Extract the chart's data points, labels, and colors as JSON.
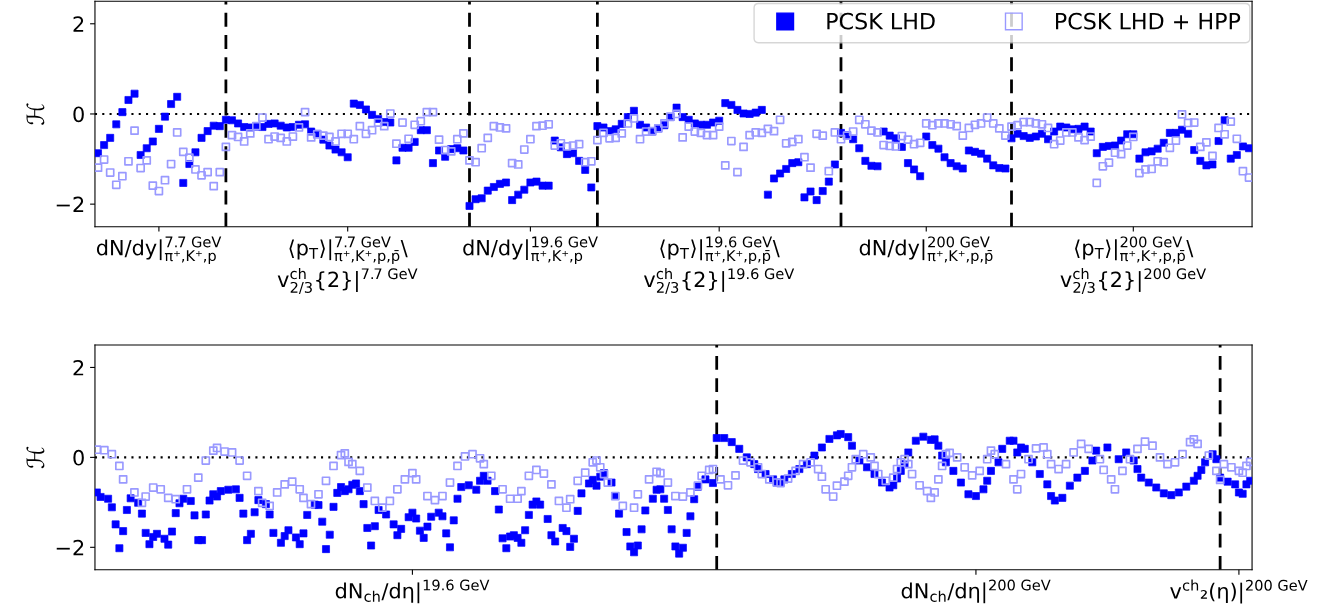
{
  "chart_data": [
    {
      "type": "scatter",
      "ylabel": "ℋ",
      "ylim": [
        -2.5,
        2.5
      ],
      "yticks": [
        -2,
        0,
        2
      ],
      "categories": [
        null,
        null,
        null,
        null,
        null,
        null,
        null,
        null,
        null,
        null,
        "dN/dy|$^{7.7 GeV}$$_{π⁺,K⁺,p}$",
        null,
        null,
        null,
        null,
        null,
        null,
        null,
        null,
        null,
        null,
        null,
        null,
        null,
        null,
        null,
        null,
        null,
        null,
        null,
        null,
        null,
        null,
        null,
        null,
        null,
        null,
        null,
        null,
        null,
        null,
        "⟨p$_{T}$⟩|$^{7.7 GeV}$$_{π⁺,K⁺,p,p̄}$\\\nv$^{ch}$$_{2/3}${2}|$^{7.7 GeV}$",
        null,
        null,
        null,
        null,
        null,
        null,
        null,
        null,
        null,
        null,
        null,
        null,
        null,
        null,
        null,
        null,
        null,
        null,
        null,
        null,
        null,
        null,
        null,
        null,
        null,
        null,
        null,
        null,
        null,
        "dN/dy|$^{19.6 GeV}$$_{π⁺,K⁺,p}$",
        null,
        null,
        null,
        null,
        null,
        null,
        null,
        null,
        null,
        null,
        null,
        null,
        null,
        null,
        null,
        null,
        null,
        null,
        null,
        null,
        null,
        null,
        null,
        null,
        null,
        null,
        null,
        null,
        null,
        null,
        "⟨p$_{T}$⟩|$^{19.6 GeV}$$_{π⁺,K⁺,p,p̄}$\\\nv$^{ch}$$_{2/3}${2}|$^{19.6 GeV}$",
        null,
        null,
        null,
        null,
        null,
        null,
        null,
        null,
        null,
        null,
        null,
        null,
        null,
        null,
        null,
        null,
        null,
        null,
        null,
        null,
        null,
        null,
        null,
        null,
        null,
        null,
        null,
        null,
        null,
        null,
        null,
        null,
        null,
        "dN/dy|$^{200 GeV}$$_{π⁺,K⁺,p,p̄}$",
        null,
        null,
        null,
        null,
        null,
        null,
        null,
        null,
        null,
        null,
        null,
        null,
        null,
        null,
        null,
        null,
        null,
        null,
        null,
        null,
        null,
        null,
        null,
        null,
        null,
        null,
        null,
        null,
        null,
        null,
        null,
        null,
        null,
        "⟨p$_{T}$⟩|$^{200 GeV}$$_{π⁺,K⁺,p,p̄}$\\\nv$^{ch}$$_{2/3}${2}|$^{200 GeV}$",
        null,
        null,
        null,
        null,
        null,
        null,
        null,
        null,
        null,
        null,
        null,
        null,
        null,
        null,
        null,
        null,
        null,
        null,
        null
      ],
      "grid": false,
      "legend": "top right",
      "marker": "square",
      "ref_lines": [
        {
          "axis": "y",
          "value": 0,
          "color": "#000000",
          "line_style": "dotted"
        }
      ],
      "series": [
        {
          "name": "PCSK LHD",
          "color": "#0000ff",
          "values": [
            -0.87,
            -0.69,
            -0.53,
            -0.23,
            0.04,
            0.31,
            0.45,
            -0.91,
            -0.76,
            -0.61,
            -0.33,
            -0.06,
            0.22,
            0.38,
            -1.53,
            -1.11,
            -0.85,
            -0.53,
            -0.38,
            -0.26,
            -0.27,
            -0.13,
            -0.14,
            -0.21,
            -0.29,
            -0.3,
            -0.28,
            -0.29,
            -0.22,
            -0.21,
            -0.26,
            -0.3,
            -0.29,
            -0.24,
            -0.23,
            -0.39,
            -0.44,
            -0.57,
            -0.7,
            -0.79,
            -0.85,
            -0.96,
            0.23,
            0.2,
            0.1,
            -0.02,
            -0.11,
            -0.18,
            -0.19,
            -1.03,
            -0.75,
            -0.75,
            -0.62,
            -0.36,
            -0.36,
            -1.09,
            -0.81,
            -0.95,
            -0.78,
            -0.76,
            -0.81,
            -2.04,
            -1.89,
            -1.87,
            -1.7,
            -1.62,
            -1.55,
            -1.52,
            -1.91,
            -1.79,
            -1.68,
            -1.52,
            -1.5,
            -1.59,
            -1.59,
            -0.59,
            -0.74,
            -0.89,
            -0.87,
            -1.04,
            -1.24,
            -1.63,
            -0.27,
            -0.3,
            -0.38,
            -0.34,
            -0.22,
            -0.07,
            0.07,
            -0.24,
            -0.3,
            -0.39,
            -0.32,
            -0.25,
            -0.07,
            0.14,
            -0.07,
            -0.13,
            -0.21,
            -0.24,
            -0.24,
            -0.19,
            -0.15,
            0.24,
            0.2,
            0.09,
            0.01,
            0.0,
            0.03,
            0.09,
            -1.79,
            -1.43,
            -1.32,
            -1.22,
            -1.09,
            -1.07,
            -1.85,
            -1.72,
            -1.91,
            -1.71,
            -1.5,
            -1.12,
            -0.42,
            -0.47,
            -0.56,
            -0.76,
            -1.04,
            -1.15,
            -1.16,
            -0.39,
            -0.48,
            -0.54,
            -0.73,
            -1.09,
            -1.23,
            -1.38,
            -0.5,
            -0.69,
            -0.77,
            -0.96,
            -1.09,
            -1.16,
            -1.21,
            -0.81,
            -0.84,
            -0.88,
            -0.99,
            -1.14,
            -1.2,
            -1.21,
            -0.54,
            -0.44,
            -0.49,
            -0.53,
            -0.5,
            -0.44,
            -0.56,
            -0.39,
            -0.28,
            -0.3,
            -0.34,
            -0.33,
            -0.28,
            -0.39,
            -0.87,
            -0.73,
            -0.71,
            -0.7,
            -0.59,
            -0.45,
            -0.45,
            -0.99,
            -0.85,
            -0.83,
            -0.77,
            -0.64,
            -0.42,
            -0.42,
            -0.35,
            -0.44,
            -0.8,
            -1.04,
            -1.14,
            -1.12,
            -0.6,
            -0.14,
            -0.99,
            -0.91,
            -0.72,
            -0.76
          ]
        },
        {
          "name": "PCSK LHD + HPP",
          "color": "#9999ff",
          "values": [
            -1.19,
            -1.01,
            -1.3,
            -1.57,
            -1.38,
            -1.05,
            -0.37,
            -1.2,
            -1.03,
            -1.59,
            -1.71,
            -1.47,
            -1.11,
            -0.41,
            -0.84,
            -0.97,
            -1.23,
            -1.36,
            -1.29,
            -1.6,
            -1.29,
            -0.73,
            -0.47,
            -0.51,
            -0.61,
            -0.43,
            -0.27,
            -0.08,
            -0.56,
            -0.5,
            -0.53,
            -0.61,
            -0.5,
            -0.3,
            0.04,
            -0.52,
            -0.45,
            -0.48,
            -0.51,
            -0.61,
            -0.44,
            -0.44,
            -0.56,
            -0.27,
            -0.44,
            -0.36,
            -0.19,
            -0.27,
            0.01,
            -0.66,
            -0.19,
            -0.55,
            -0.24,
            -0.16,
            0.04,
            0.04,
            -0.57,
            -0.8,
            -0.83,
            -0.56,
            -0.43,
            -1.03,
            -1.07,
            -0.76,
            -0.53,
            -0.27,
            -0.3,
            -0.32,
            -1.09,
            -1.12,
            -0.79,
            -0.56,
            -0.27,
            -0.26,
            -0.23,
            -0.7,
            -0.65,
            -0.72,
            -0.7,
            -0.67,
            -1.07,
            -1.05,
            -0.58,
            -0.42,
            -0.54,
            -0.53,
            -0.43,
            -0.21,
            -0.1,
            -0.56,
            -0.39,
            -0.38,
            -0.32,
            -0.21,
            -0.06,
            0.0,
            -0.52,
            -0.28,
            -0.39,
            -0.42,
            -0.47,
            -0.47,
            -0.28,
            -1.14,
            -0.6,
            -1.29,
            -0.73,
            -0.47,
            -0.41,
            -0.42,
            -0.33,
            -0.38,
            -0.13,
            -0.65,
            -0.62,
            -0.56,
            -0.96,
            -1.19,
            -0.44,
            -0.48,
            -1.27,
            -0.41,
            -0.56,
            -0.48,
            -0.39,
            -0.13,
            -0.23,
            -0.37,
            -0.41,
            -0.69,
            -0.71,
            -0.72,
            -0.49,
            -0.57,
            -0.67,
            -0.64,
            -0.21,
            -0.25,
            -0.21,
            -0.21,
            -0.23,
            -0.27,
            -0.48,
            -0.31,
            -0.24,
            -0.21,
            -0.08,
            -0.21,
            -0.32,
            -0.48,
            -0.28,
            -0.25,
            -0.18,
            -0.18,
            -0.21,
            -0.23,
            -0.31,
            -0.67,
            -0.59,
            -0.41,
            -0.41,
            -0.52,
            -0.58,
            -0.5,
            -1.53,
            -1.16,
            -1.08,
            -0.86,
            -0.89,
            -0.7,
            -0.51,
            -1.31,
            -1.23,
            -1.22,
            -1.05,
            -1.07,
            -0.75,
            -0.59,
            -0.01,
            -0.2,
            -0.19,
            -0.73,
            -0.63,
            -0.93,
            -0.31,
            -0.45,
            -0.17,
            -0.55,
            -1.27,
            -1.41
          ]
        }
      ]
    },
    {
      "type": "scatter",
      "ylabel": "ℋ",
      "ylim": [
        -2.5,
        2.5
      ],
      "yticks": [
        -2,
        0,
        2
      ],
      "categories": [
        null,
        null,
        null,
        null,
        null,
        null,
        null,
        null,
        null,
        null,
        null,
        null,
        null,
        null,
        null,
        null,
        null,
        null,
        null,
        null,
        null,
        null,
        null,
        null,
        null,
        null,
        null,
        null,
        null,
        null,
        null,
        null,
        null,
        null,
        null,
        null,
        null,
        null,
        null,
        null,
        null,
        null,
        null,
        null,
        null,
        null,
        null,
        null,
        null,
        null,
        null,
        null,
        null,
        null,
        null,
        null,
        null,
        null,
        null,
        null,
        null,
        null,
        null,
        null,
        null,
        null,
        null,
        null,
        null,
        null,
        null,
        null,
        null,
        null,
        null,
        null,
        null,
        null,
        null,
        null,
        null,
        null,
        null,
        null,
        "dN$_{ch}$/dη|$^{19.6 GeV}$",
        null,
        null,
        null,
        null,
        null,
        null,
        null,
        null,
        null,
        null,
        null,
        null,
        null,
        null,
        null,
        null,
        null,
        null,
        null,
        null,
        null,
        null,
        null,
        null,
        null,
        null,
        null,
        null,
        null,
        null,
        null,
        null,
        null,
        null,
        null,
        null,
        null,
        null,
        null,
        null,
        null,
        null,
        null,
        null,
        null,
        null,
        null,
        null,
        null,
        null,
        null,
        null,
        null,
        null,
        null,
        null,
        null,
        null,
        null,
        null,
        null,
        null,
        null,
        null,
        null,
        null,
        null,
        null,
        null,
        null,
        null,
        null,
        null,
        null,
        null,
        null,
        null,
        null,
        null,
        null,
        null,
        null,
        null,
        null,
        null,
        null,
        null,
        null,
        null,
        null,
        null,
        null,
        null,
        null,
        null,
        null,
        null,
        null,
        null,
        null,
        null,
        null,
        null,
        null,
        null,
        null,
        null,
        null,
        null,
        null,
        null,
        null,
        null,
        null,
        null,
        null,
        null,
        null,
        null,
        null,
        null,
        null,
        null,
        null,
        null,
        null,
        null,
        null,
        null,
        null,
        null,
        null,
        null,
        null,
        null,
        null,
        null,
        null,
        null,
        null,
        null,
        null,
        null,
        null,
        null,
        null,
        null,
        null,
        null,
        "dN$_{ch}$/dη|$^{200 GeV}$",
        null,
        null,
        null,
        null,
        null,
        null,
        null,
        null,
        null,
        null,
        null,
        null,
        null,
        null,
        null,
        null,
        null,
        null,
        null,
        null,
        null,
        null,
        null,
        null,
        null,
        null,
        null,
        null,
        null,
        null,
        null,
        null,
        null,
        null,
        null,
        null,
        null,
        null,
        null,
        null,
        null,
        null,
        null,
        null,
        null,
        null,
        null,
        null,
        null,
        null,
        null,
        null,
        null,
        null,
        null,
        null,
        null,
        null,
        null,
        null,
        null,
        null,
        null,
        null,
        null,
        null,
        null,
        null,
        null,
        "v$^{ch}$₂(η)|$^{200 GeV}$",
        null,
        null,
        null
      ],
      "grid": false,
      "marker": "square",
      "ref_lines": [
        {
          "axis": "y",
          "value": 0,
          "color": "#000000",
          "line_style": "dotted"
        }
      ],
      "series": [
        {
          "color": "#0000ff",
          "values": [
            -0.78,
            -0.88,
            null,
            -0.92,
            -1.11,
            -1.49,
            -2.02,
            -1.64,
            -1.17,
            -0.91,
            null,
            -1.01,
            -1.25,
            -1.68,
            -1.93,
            -1.77,
            -1.7,
            null,
            -1.81,
            -1.94,
            -1.65,
            -1.24,
            -1.02,
            -0.92,
            null,
            -0.97,
            -1.29,
            -1.84,
            -1.84,
            -1.27,
            -0.96,
            -0.82,
            -0.87,
            -0.75,
            null,
            -0.72,
            null,
            -0.71,
            -0.9,
            -1.25,
            -1.84,
            -1.7,
            -1.22,
            -0.95,
            null,
            -1.04,
            -1.27,
            -1.68,
            null,
            -1.9,
            -1.75,
            -1.62,
            null,
            -1.78,
            -1.93,
            -1.69,
            -1.28,
            null,
            -1.05,
            -1.06,
            -1.43,
            -2.04,
            -1.72,
            -1.1,
            -0.79,
            -0.66,
            -0.75,
            -0.71,
            -0.61,
            -0.58,
            -0.75,
            -1.04,
            -1.57,
            -1.96,
            -1.53,
            -1.17,
            null,
            -1.27,
            null,
            -1.49,
            -1.73,
            -1.59,
            null,
            -1.33,
            -1.23,
            -1.36,
            -1.63,
            -1.79,
            -1.54,
            -1.32,
            null,
            -1.23,
            -1.31,
            -1.69,
            -2.0,
            -1.4,
            -0.92,
            -0.66,
            null,
            -0.62,
            null,
            -0.72,
            -0.52,
            -0.41,
            -0.52,
            null,
            -0.75,
            -1.16,
            -1.8,
            -2.02,
            -1.76,
            -1.73,
            -1.79,
            -1.9,
            -1.62,
            -1.28,
            -1.05,
            -0.98,
            -1.05,
            null,
            -1.37,
            -1.73,
            -1.87,
            null,
            -1.57,
            -1.64,
            -1.99,
            -1.81,
            -1.19,
            -0.8,
            null,
            -0.58,
            -0.5,
            -0.63,
            -0.43,
            -0.35,
            null,
            -0.56,
            -0.86,
            -1.25,
            null,
            -1.66,
            -1.98,
            -2.11,
            -1.96,
            -1.6,
            -1.18,
            null,
            -0.92,
            -0.72,
            -0.71,
            -0.92,
            -1.17,
            -1.6,
            -1.98,
            -2.14,
            -2.01,
            -1.68,
            -1.31,
            -0.93,
            -0.65,
            null,
            -0.49,
            null,
            -0.57,
            0.43,
            null,
            0.43,
            null,
            0.34,
            null,
            0.19,
            null,
            0.0,
            null,
            -0.15,
            -0.26,
            null,
            -0.37,
            null,
            -0.49,
            -0.56,
            -0.56,
            -0.49,
            null,
            -0.37,
            null,
            -0.26,
            null,
            -0.15,
            null,
            0.04,
            null,
            0.22,
            null,
            0.41,
            null,
            0.49,
            0.52,
            null,
            0.45,
            0.26,
            null,
            -0.07,
            null,
            -0.22,
            null,
            -0.37,
            null,
            -0.56,
            null,
            -0.67,
            -0.62,
            -0.47,
            -0.3,
            -0.15,
            0.11,
            null,
            0.37,
            null,
            0.46,
            null,
            0.39,
            0.4,
            0.26,
            0.04,
            -0.11,
            null,
            -0.3,
            null,
            -0.56,
            null,
            -0.82,
            null,
            -0.86,
            null,
            -0.71,
            -0.52,
            -0.3,
            null,
            -0.11,
            0.19,
            null,
            0.37,
            0.37,
            0.11,
            0.22,
            0.19,
            null,
            -0.11,
            null,
            -0.37,
            null,
            -0.6,
            -0.86,
            -0.96,
            null,
            -0.9,
            null,
            -0.63,
            null,
            -0.45,
            null,
            -0.3,
            null,
            -0.07,
            0.15,
            null,
            null,
            0.22,
            null,
            null,
            -0.04,
            null,
            0.11,
            null,
            -0.07,
            -0.26,
            -0.45,
            null,
            -0.56,
            null,
            -0.67,
            null,
            -0.8,
            null,
            -0.84,
            null,
            -0.78,
            null,
            -0.65,
            null,
            -0.52,
            -0.41,
            -0.28,
            -0.11,
            null,
            0.07,
            -0.04,
            -0.45,
            null,
            -0.54,
            null,
            -0.6,
            -0.78,
            -0.81,
            -0.6,
            -0.52
          ]
        },
        {
          "color": "#9999ff",
          "values": [
            0.17,
            null,
            0.16,
            null,
            0.07,
            null,
            -0.19,
            -0.49,
            null,
            null,
            -0.78,
            null,
            -1.01,
            -0.87,
            null,
            -0.67,
            null,
            -0.71,
            null,
            -0.9,
            null,
            -0.93,
            null,
            null,
            -0.71,
            null,
            null,
            -0.45,
            null,
            -0.07,
            null,
            0.15,
            0.21,
            null,
            0.13,
            null,
            0.11,
            null,
            -0.07,
            null,
            -0.41,
            null,
            null,
            -0.75,
            -1.01,
            null,
            -1.08,
            null,
            -0.78,
            null,
            -0.6,
            null,
            -0.54,
            null,
            -0.71,
            -0.9,
            null,
            -1.04,
            null,
            -0.82,
            null,
            -0.52,
            null,
            -0.19,
            null,
            0.05,
            0.09,
            -0.1,
            -0.15,
            null,
            -0.3,
            null,
            -0.67,
            null,
            -0.97,
            null,
            -1.12,
            null,
            -0.97,
            null,
            -0.71,
            null,
            -0.49,
            null,
            -0.35,
            -0.49,
            null,
            null,
            -0.86,
            null,
            -0.95,
            null,
            -0.86,
            null,
            -0.56,
            null,
            -0.19,
            null,
            0.02,
            null,
            0.07,
            null,
            -0.02,
            -0.15,
            null,
            -0.41,
            null,
            null,
            -0.71,
            null,
            -0.92,
            null,
            -0.92,
            -0.75,
            null,
            -0.41,
            null,
            -0.28,
            null,
            -0.36,
            null,
            -0.6,
            null,
            -0.97,
            null,
            -1.12,
            -0.93,
            null,
            -0.52,
            null,
            -0.34,
            null,
            -0.11,
            -0.07,
            -0.22,
            -0.37,
            -0.56,
            null,
            -0.86,
            null,
            -1.08,
            null,
            null,
            -1.12,
            -0.82,
            null,
            null,
            -0.49,
            null,
            -0.32,
            -0.35,
            null,
            -0.56,
            null,
            -0.86,
            null,
            -0.87,
            null,
            -0.78,
            null,
            -0.63,
            -0.41,
            null,
            -0.28,
            -0.26,
            null,
            -0.49,
            null,
            -0.62,
            null,
            -0.4,
            null,
            -0.07,
            null,
            -0.11,
            null,
            -0.22,
            -0.37,
            null,
            -0.49,
            null,
            -0.56,
            -0.57,
            null,
            -0.47,
            null,
            -0.3,
            null,
            -0.15,
            null,
            -0.11,
            null,
            -0.26,
            -0.43,
            -0.71,
            null,
            -0.87,
            -0.63,
            null,
            -0.54,
            -0.41,
            -0.22,
            -0.04,
            null,
            0.07,
            null,
            0.0,
            -0.19,
            -0.37,
            null,
            -0.52,
            null,
            -0.45,
            -0.26,
            -0.11,
            -0.04,
            -0.15,
            -0.37,
            null,
            -0.62,
            null,
            -0.75,
            -0.9,
            -0.78,
            -0.49,
            -0.19,
            0.07,
            0.1,
            null,
            0.0,
            null,
            -0.22,
            null,
            -0.4,
            null,
            -0.3,
            null,
            -0.04,
            0.15,
            0.07,
            null,
            null,
            -0.15,
            null,
            -0.49,
            -0.71,
            -0.37,
            null,
            -0.04,
            null,
            0.2,
            null,
            0.22,
            0.07,
            -0.15,
            null,
            -0.26,
            null,
            -0.15,
            null,
            0.11,
            null,
            0.3,
            null,
            0.19,
            null,
            null,
            -0.04,
            -0.28,
            null,
            -0.49,
            -0.71,
            null,
            -0.3,
            null,
            -0.04,
            null,
            0.19,
            null,
            0.35,
            null,
            0.26,
            null,
            0.0,
            null,
            -0.15,
            null,
            -0.11,
            null,
            0.07,
            null,
            0.34,
            0.4,
            0.3,
            null,
            null,
            0.04,
            null,
            -0.3,
            -0.5,
            -0.15,
            null,
            -0.22,
            null,
            -0.3,
            -0.34,
            -0.19,
            -0.1
          ]
        }
      ]
    }
  ]
}
